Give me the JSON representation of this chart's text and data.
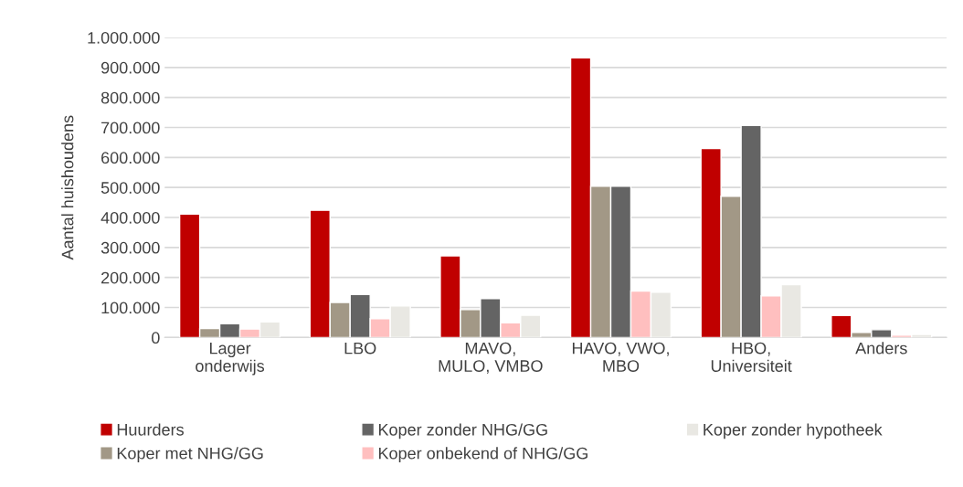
{
  "chart_data": {
    "type": "bar",
    "ylabel": "Aantal huishoudens",
    "categories": [
      "Lager\nonderwijs",
      "LBO",
      "MAVO,\nMULO, VMBO",
      "HAVO, VWO,\nMBO",
      "HBO,\nUniversiteit",
      "Anders"
    ],
    "series": [
      {
        "name": "Huurders",
        "color": "#c00000",
        "values": [
          411000,
          424000,
          272000,
          932000,
          630000,
          73000
        ]
      },
      {
        "name": "Koper met NHG/GG",
        "color": "#a29886",
        "values": [
          30000,
          117000,
          93000,
          504000,
          471000,
          17000
        ]
      },
      {
        "name": "Koper zonder NHG/GG",
        "color": "#646464",
        "values": [
          46000,
          143000,
          130000,
          504000,
          707000,
          26000
        ]
      },
      {
        "name": "Koper onbekend of NHG/GG",
        "color": "#ffbfbf",
        "values": [
          28000,
          63000,
          49000,
          155000,
          139000,
          8000
        ]
      },
      {
        "name": "Koper zonder hypotheek",
        "color": "#e9e8e3",
        "values": [
          52000,
          105000,
          74000,
          151000,
          176000,
          10000
        ]
      }
    ],
    "ylim": [
      0,
      1000000
    ],
    "yticks": [
      {
        "value": 0,
        "label": "0"
      },
      {
        "value": 100000,
        "label": "100.000"
      },
      {
        "value": 200000,
        "label": "200.000"
      },
      {
        "value": 300000,
        "label": "300.000"
      },
      {
        "value": 400000,
        "label": "400.000"
      },
      {
        "value": 500000,
        "label": "500.000"
      },
      {
        "value": 600000,
        "label": "600.000"
      },
      {
        "value": 700000,
        "label": "700.000"
      },
      {
        "value": 800000,
        "label": "800.000"
      },
      {
        "value": 900000,
        "label": "900.000"
      },
      {
        "value": 1000000,
        "label": "1.000.000"
      }
    ],
    "grid": "y",
    "legend": "bottom"
  }
}
